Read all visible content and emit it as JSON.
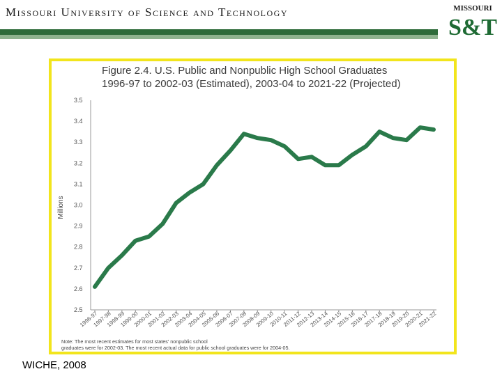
{
  "header": {
    "title": "Missouri University of Science and Technology",
    "logo_top": "MISSOURI",
    "logo_main": "S&T"
  },
  "figure": {
    "title_line1": "Figure 2.4.  U.S. Public and Nonpublic High School Graduates",
    "title_line2": "1996-97 to 2002-03 (Estimated), 2003-04 to 2021-22 (Projected)",
    "note": "Note: The most recent estimates for most states' nonpublic school graduates were for 2002-03. The most recent actual data for public school graduates were for 2004-05."
  },
  "source": "WICHE, 2008",
  "colors": {
    "line": "#2a7a4a",
    "frame": "#f2e51c",
    "brand_green": "#2e6b3a"
  },
  "chart_data": {
    "type": "line",
    "title": "U.S. Public and Nonpublic High School Graduates",
    "xlabel": "",
    "ylabel": "Millions",
    "ylim": [
      2.5,
      3.5
    ],
    "yticks": [
      2.5,
      2.6,
      2.7,
      2.8,
      2.9,
      3.0,
      3.1,
      3.2,
      3.3,
      3.4,
      3.5
    ],
    "ytick_labels": [
      "2.5",
      "2.6",
      "2.7",
      "2.8",
      "2.9",
      "3.0",
      "3.1",
      "3.2",
      "3.3",
      "3.4",
      "3.5"
    ],
    "categories": [
      "1996-97",
      "1997-98",
      "1998-99",
      "1999-00",
      "2000-01",
      "2001-02",
      "2002-03",
      "2003-04",
      "2004-05",
      "2005-06",
      "2006-07",
      "2007-08",
      "2008-09",
      "2009-10",
      "2010-11",
      "2011-12",
      "2012-13",
      "2013-14",
      "2014-15",
      "2015-16",
      "2016-17",
      "2017-18",
      "2018-19",
      "2019-20",
      "2020-21",
      "2021-22"
    ],
    "series": [
      {
        "name": "Graduates",
        "values": [
          2.61,
          2.7,
          2.76,
          2.83,
          2.85,
          2.91,
          3.01,
          3.06,
          3.1,
          3.19,
          3.26,
          3.34,
          3.32,
          3.31,
          3.28,
          3.22,
          3.23,
          3.19,
          3.19,
          3.24,
          3.28,
          3.35,
          3.32,
          3.31,
          3.37,
          3.36
        ]
      }
    ]
  }
}
